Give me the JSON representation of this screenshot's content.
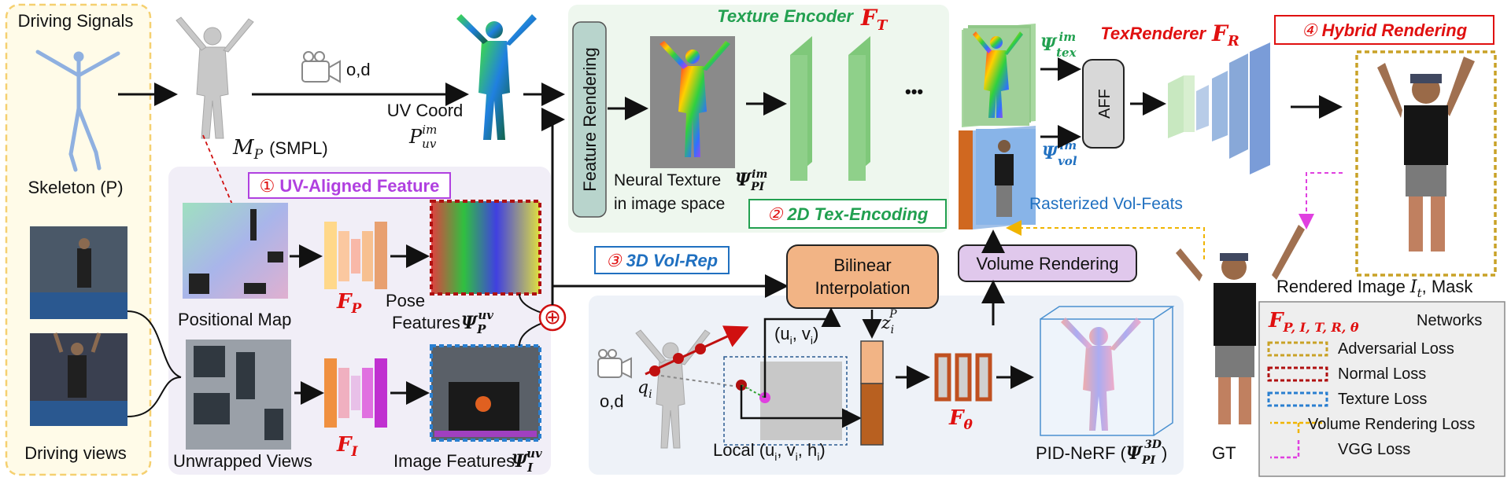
{
  "driving": {
    "signals_label": "Driving Signals",
    "skeleton_label": "Skeleton (P)",
    "views_label": "Driving views"
  },
  "smpl": {
    "label_symbol": "M",
    "label_sub": "P",
    "label_suffix": "(SMPL)"
  },
  "camera": {
    "label": "o,d"
  },
  "uv_coord": {
    "label": "UV Coord",
    "symbol": "P",
    "sub": "uv",
    "sup": "im"
  },
  "feature_rendering": {
    "label": "Feature Rendering"
  },
  "neural_texture": {
    "line1": "Neural Texture",
    "line2": "in image space",
    "symbol": "Ψ",
    "sub": "PI",
    "sup": "im"
  },
  "texture_encoder": {
    "label": "Texture Encoder",
    "symbol": "F",
    "sub": "T",
    "ellipsis": "•••"
  },
  "stage1": {
    "num": "①",
    "label": "UV-Aligned Feature"
  },
  "stage2": {
    "num": "②",
    "label": "2D Tex-Encoding"
  },
  "stage3": {
    "num": "③",
    "label": "3D Vol-Rep"
  },
  "stage4": {
    "num": "④",
    "label": "Hybrid Rendering"
  },
  "positional_map": {
    "label": "Positional Map"
  },
  "fp": {
    "symbol": "F",
    "sub": "P"
  },
  "fi": {
    "symbol": "F",
    "sub": "I"
  },
  "pose_features": {
    "line1": "Pose",
    "line2": "Features",
    "symbol": "Ψ",
    "sub": "P",
    "sup": "uv"
  },
  "unwrapped_views": {
    "label": "Unwrapped Views"
  },
  "image_features": {
    "label": "Image Features",
    "symbol": "Ψ",
    "sub": "I",
    "sup": "uv"
  },
  "plus": "⊕",
  "psi_tex": {
    "symbol": "Ψ",
    "sub": "tex",
    "sup": "im"
  },
  "psi_vol": {
    "symbol": "Ψ",
    "sub": "vol",
    "sup": "im"
  },
  "aff": {
    "label": "AFF"
  },
  "texrenderer": {
    "label": "TexRenderer",
    "symbol": "F",
    "sub": "R"
  },
  "rasterized": {
    "label": "Rasterized Vol-Feats"
  },
  "bilinear": {
    "line1": "Bilinear",
    "line2": "Interpolation"
  },
  "volume_rendering": {
    "label": "Volume Rendering"
  },
  "zp": {
    "symbol": "z",
    "sub": "i",
    "sup": "P"
  },
  "qi": {
    "symbol": "q",
    "sub": "i"
  },
  "cam2": {
    "label": "o,d"
  },
  "uv_i": {
    "label": "(u",
    "sub1": "i",
    "mid": ", v",
    "sub2": "i",
    "end": ")"
  },
  "local": {
    "label": "Local (u",
    "s1": "i",
    "m1": ", v",
    "s2": "i",
    "m2": ", h",
    "s3": "i",
    "end": ")"
  },
  "ftheta": {
    "symbol": "F",
    "sub": "θ"
  },
  "pid_nerf": {
    "label": "PID-NeRF (",
    "symbol": "Ψ",
    "sub": "PI",
    "sup": "3D",
    "end": ")"
  },
  "gt": {
    "label": "GT"
  },
  "rendered": {
    "label": "Rendered Image",
    "symbol": "I",
    "sub": "t",
    "suffix": ", Mask"
  },
  "legend": {
    "networks_symbol": "F",
    "networks_sub": "P, I, T, R, θ",
    "networks_label": "Networks",
    "items": [
      {
        "label": "Adversarial Loss",
        "color": "#c9a227"
      },
      {
        "label": "Normal Loss",
        "color": "#b01010"
      },
      {
        "label": "Texture Loss",
        "color": "#2a7fd0"
      },
      {
        "label": "Volume Rendering Loss",
        "color": "#f0b400"
      },
      {
        "label": "VGG Loss",
        "color": "#e040e0"
      }
    ]
  },
  "colors": {
    "red": "#e01010",
    "green": "#22a050",
    "blue": "#2070c0",
    "purple": "#b040e0",
    "orange_box": "#f2b485"
  }
}
